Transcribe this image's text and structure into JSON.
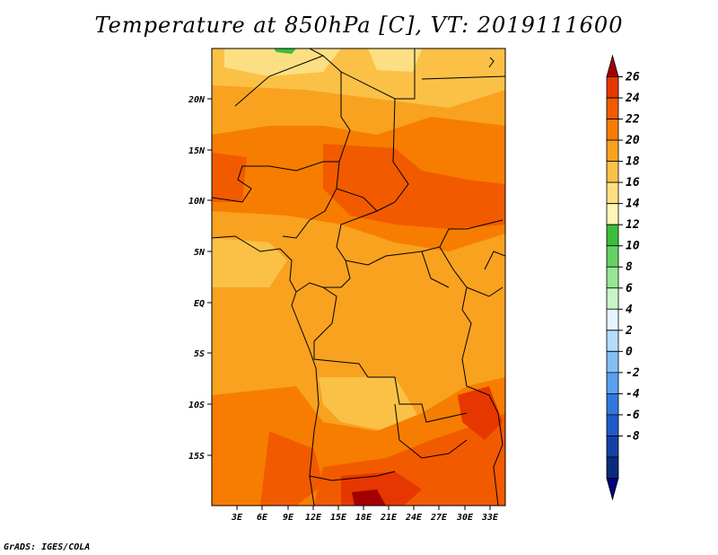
{
  "title": "Temperature at 850hPa [C], VT: 2019111600",
  "footer": "GrADS: IGES/COLA",
  "map": {
    "lat_labels": [
      "20N",
      "15N",
      "10N",
      "5N",
      "EQ",
      "5S",
      "10S",
      "15S"
    ],
    "lon_labels": [
      "3E",
      "6E",
      "9E",
      "12E",
      "15E",
      "18E",
      "21E",
      "24E",
      "27E",
      "30E",
      "33E"
    ]
  },
  "colorbar": {
    "labels": [
      "26",
      "24",
      "22",
      "20",
      "18",
      "16",
      "14",
      "12",
      "10",
      "8",
      "6",
      "4",
      "2",
      "0",
      "-2",
      "-4",
      "-6",
      "-8"
    ],
    "colors": [
      "#a50000",
      "#e63700",
      "#f25a00",
      "#f77d00",
      "#f9a21f",
      "#fbc147",
      "#fddf83",
      "#fff5b5",
      "#3cbe3c",
      "#64d264",
      "#96e696",
      "#c8f5c8",
      "#e6f5ff",
      "#b4dcff",
      "#82bef5",
      "#5aa0f0",
      "#3278dc",
      "#1e5ac8",
      "#1440a5",
      "#0a2a7d",
      "#000080"
    ]
  }
}
